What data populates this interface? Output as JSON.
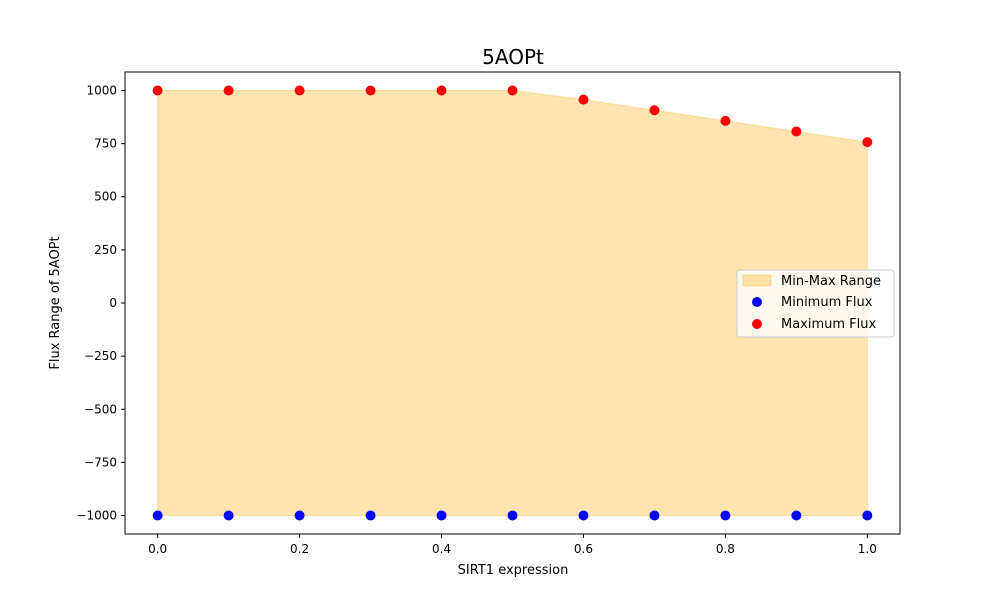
{
  "chart_data": {
    "type": "scatter",
    "title": "5AOPt",
    "xlabel": "SIRT1 expression",
    "ylabel": "Flux Range of 5AOPt",
    "xlim": [
      -0.046,
      1.046
    ],
    "ylim": [
      -1087,
      1087
    ],
    "x_ticks": [
      0.0,
      0.2,
      0.4,
      0.6,
      0.8,
      1.0
    ],
    "x_tick_labels": [
      "0.0",
      "0.2",
      "0.4",
      "0.6",
      "0.8",
      "1.0"
    ],
    "y_ticks": [
      -1000,
      -750,
      -500,
      -250,
      0,
      250,
      500,
      750,
      1000
    ],
    "y_tick_labels": [
      "−1000",
      "−750",
      "−500",
      "−250",
      "0",
      "250",
      "500",
      "750",
      "1000"
    ],
    "grid": false,
    "legend_position": "center-right",
    "x": [
      0.0,
      0.1,
      0.2,
      0.3,
      0.4,
      0.5,
      0.6,
      0.7,
      0.8,
      0.9,
      1.0
    ],
    "fill": {
      "name": "Min-Max Range",
      "color": "#ffa500",
      "opacity": 0.3
    },
    "series": [
      {
        "name": "Minimum Flux",
        "color": "#0000ff",
        "values": [
          -1000,
          -1000,
          -1000,
          -1000,
          -1000,
          -1000,
          -1000,
          -1000,
          -1000,
          -1000,
          -1000
        ]
      },
      {
        "name": "Maximum Flux",
        "color": "#ff0000",
        "values": [
          1000,
          1000,
          1000,
          1000,
          1000,
          1000,
          957,
          907,
          857,
          807,
          757
        ]
      }
    ]
  }
}
